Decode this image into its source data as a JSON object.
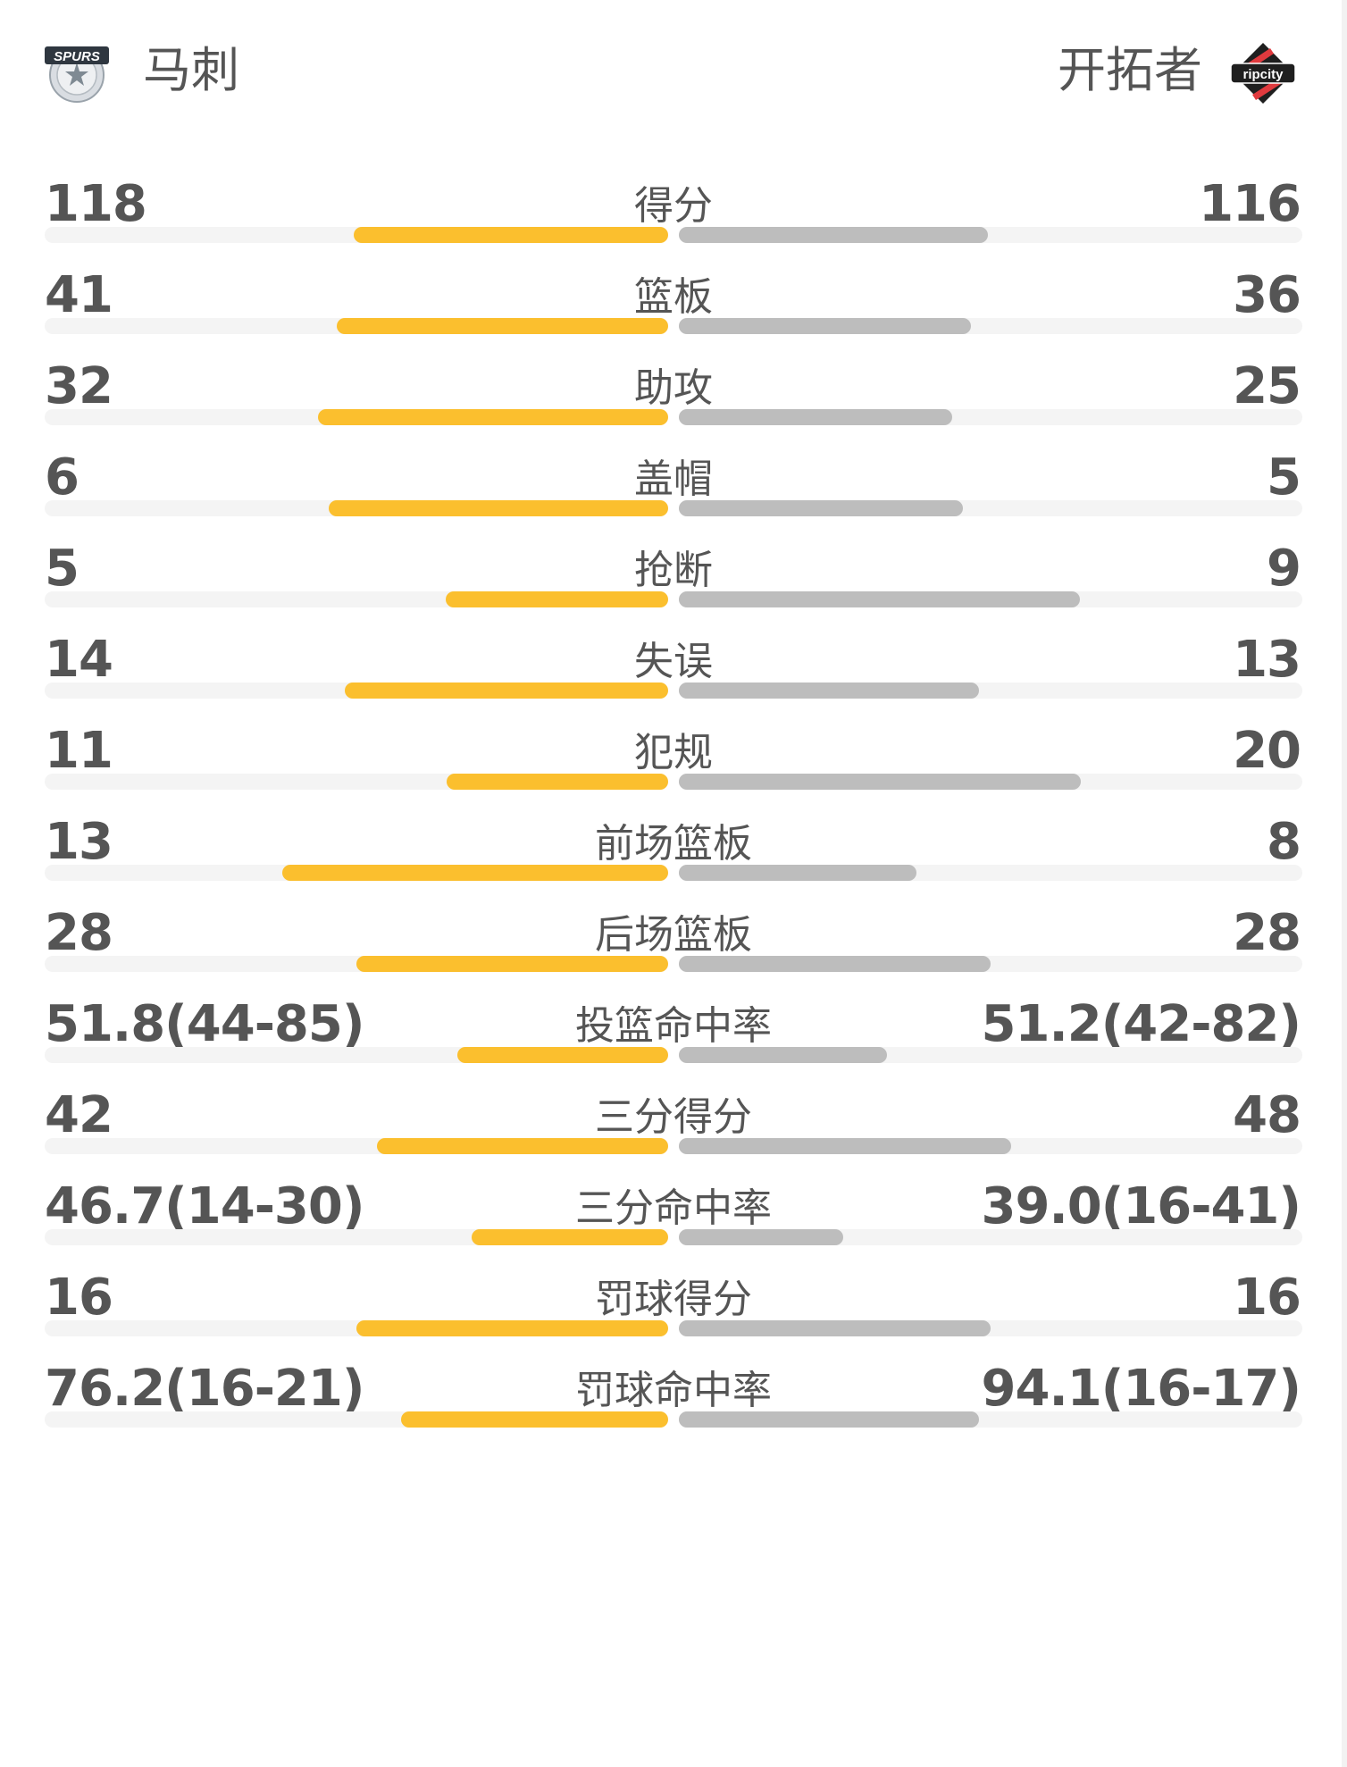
{
  "header": {
    "home_team": "马刺",
    "away_team": "开拓者",
    "home_logo_text": "SPURS",
    "away_logo_text": "ripcity"
  },
  "colors": {
    "home_bar": "#fbbf2e",
    "away_bar": "#bdbdbd",
    "track": "#f4f4f4",
    "text": "#555555"
  },
  "stats": [
    {
      "label": "得分",
      "home": "118",
      "away": "116",
      "home_share": 0.504,
      "away_share": 0.496
    },
    {
      "label": "篮板",
      "home": "41",
      "away": "36",
      "home_share": 0.532,
      "away_share": 0.468
    },
    {
      "label": "助攻",
      "home": "32",
      "away": "25",
      "home_share": 0.561,
      "away_share": 0.439
    },
    {
      "label": "盖帽",
      "home": "6",
      "away": "5",
      "home_share": 0.545,
      "away_share": 0.455
    },
    {
      "label": "抢断",
      "home": "5",
      "away": "9",
      "home_share": 0.357,
      "away_share": 0.643
    },
    {
      "label": "失误",
      "home": "14",
      "away": "13",
      "home_share": 0.519,
      "away_share": 0.481
    },
    {
      "label": "犯规",
      "home": "11",
      "away": "20",
      "home_share": 0.355,
      "away_share": 0.645
    },
    {
      "label": "前场篮板",
      "home": "13",
      "away": "8",
      "home_share": 0.619,
      "away_share": 0.381
    },
    {
      "label": "后场篮板",
      "home": "28",
      "away": "28",
      "home_share": 0.5,
      "away_share": 0.5
    },
    {
      "label": "投篮命中率",
      "home": "51.8(44-85)",
      "away": "51.2(42-82)",
      "home_share": 0.338,
      "away_share": 0.334
    },
    {
      "label": "三分得分",
      "home": "42",
      "away": "48",
      "home_share": 0.467,
      "away_share": 0.533
    },
    {
      "label": "三分命中率",
      "home": "46.7(14-30)",
      "away": "39.0(16-41)",
      "home_share": 0.315,
      "away_share": 0.263
    },
    {
      "label": "罚球得分",
      "home": "16",
      "away": "16",
      "home_share": 0.5,
      "away_share": 0.5
    },
    {
      "label": "罚球命中率",
      "home": "76.2(16-21)",
      "away": "94.1(16-17)",
      "home_share": 0.428,
      "away_share": 0.481
    }
  ]
}
